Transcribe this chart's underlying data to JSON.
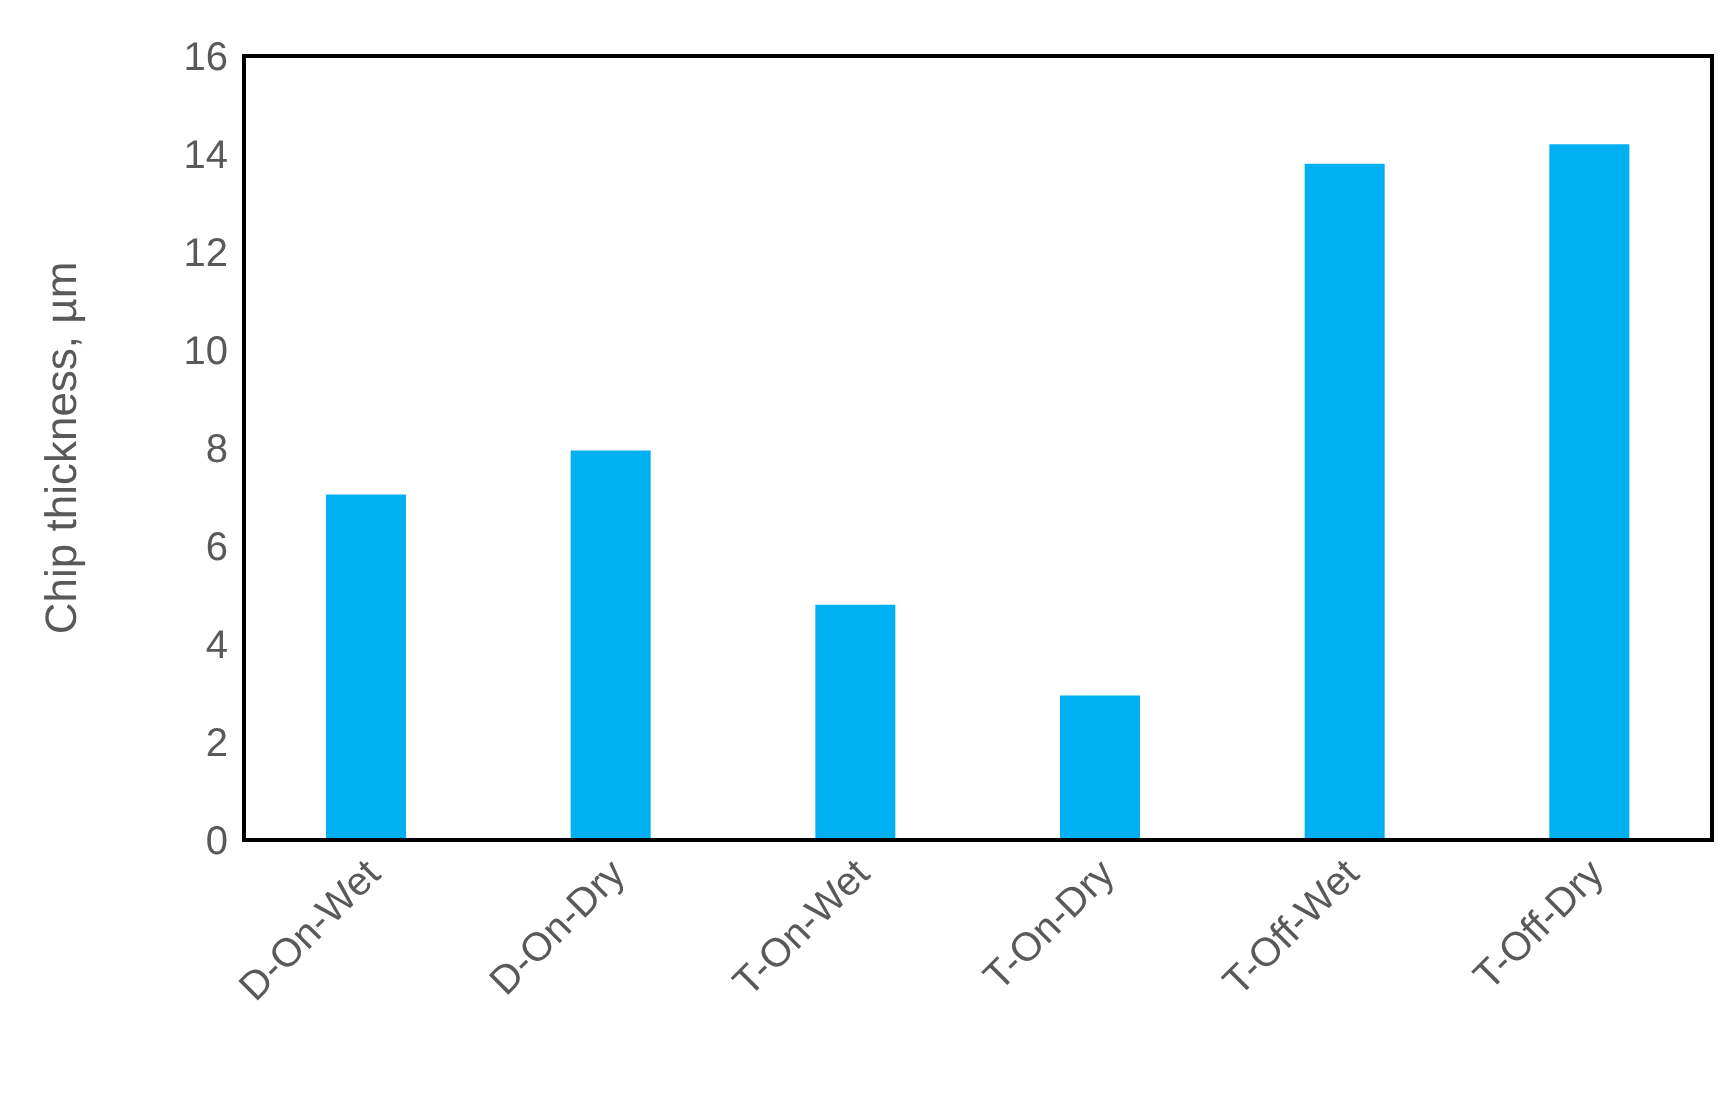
{
  "chart_data": {
    "type": "bar",
    "ylabel": "Chip thickness, µm",
    "categories": [
      "D-On-Wet",
      "D-On-Dry",
      "T-On-Wet",
      "T-On-Dry",
      "T-Off-Wet",
      "T-Off-Dry"
    ],
    "values": [
      7.05,
      7.95,
      4.8,
      2.95,
      13.8,
      14.2
    ],
    "color": "#00b0f0",
    "ylim": [
      0,
      16
    ],
    "yticks": [
      0,
      2,
      4,
      6,
      8,
      10,
      12,
      14,
      16
    ],
    "grid": false
  }
}
